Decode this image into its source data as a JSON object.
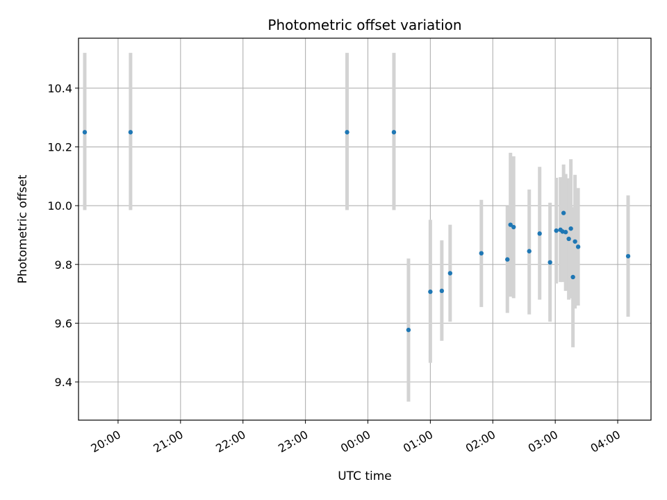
{
  "chart_data": {
    "type": "scatter",
    "title": "Photometric offset variation",
    "xlabel": "UTC time",
    "ylabel": "Photometric offset",
    "x_unit": "UTC time (HH:MM)",
    "xlim": [
      "19:22",
      "04:32"
    ],
    "ylim": [
      9.27,
      10.57
    ],
    "x_ticks": [
      "20:00",
      "21:00",
      "22:00",
      "23:00",
      "00:00",
      "01:00",
      "02:00",
      "03:00",
      "04:00"
    ],
    "y_ticks": [
      9.4,
      9.6,
      9.8,
      10.0,
      10.2,
      10.4
    ],
    "y_tick_labels": [
      "9.4",
      "9.6",
      "9.8",
      "10.0",
      "10.2",
      "10.4"
    ],
    "grid": true,
    "marker_color": "#1f77b4",
    "errorbar_color": "#d3d3d3",
    "points": [
      {
        "t": "19:28",
        "y": 10.25,
        "lo": 9.985,
        "hi": 10.52
      },
      {
        "t": "20:12",
        "y": 10.25,
        "lo": 9.985,
        "hi": 10.52
      },
      {
        "t": "23:40",
        "y": 10.25,
        "lo": 9.985,
        "hi": 10.52
      },
      {
        "t": "00:25",
        "y": 10.25,
        "lo": 9.985,
        "hi": 10.52
      },
      {
        "t": "00:39",
        "y": 9.577,
        "lo": 9.333,
        "hi": 9.82
      },
      {
        "t": "01:00",
        "y": 9.707,
        "lo": 9.465,
        "hi": 9.952
      },
      {
        "t": "01:11",
        "y": 9.71,
        "lo": 9.54,
        "hi": 9.882
      },
      {
        "t": "01:19",
        "y": 9.77,
        "lo": 9.605,
        "hi": 9.935
      },
      {
        "t": "01:49",
        "y": 9.838,
        "lo": 9.655,
        "hi": 10.02
      },
      {
        "t": "02:14",
        "y": 9.817,
        "lo": 9.635,
        "hi": 9.998
      },
      {
        "t": "02:17",
        "y": 9.935,
        "lo": 9.69,
        "hi": 10.18
      },
      {
        "t": "02:20",
        "y": 9.927,
        "lo": 9.685,
        "hi": 10.168
      },
      {
        "t": "02:35",
        "y": 9.845,
        "lo": 9.63,
        "hi": 10.055
      },
      {
        "t": "02:45",
        "y": 9.905,
        "lo": 9.68,
        "hi": 10.132
      },
      {
        "t": "02:55",
        "y": 9.807,
        "lo": 9.605,
        "hi": 10.01
      },
      {
        "t": "03:01",
        "y": 9.915,
        "lo": 9.735,
        "hi": 10.095
      },
      {
        "t": "03:05",
        "y": 9.918,
        "lo": 9.74,
        "hi": 10.097
      },
      {
        "t": "03:07",
        "y": 9.912,
        "lo": 9.74,
        "hi": 10.087
      },
      {
        "t": "03:08",
        "y": 9.975,
        "lo": 9.81,
        "hi": 10.14
      },
      {
        "t": "03:10",
        "y": 9.91,
        "lo": 9.71,
        "hi": 10.108
      },
      {
        "t": "03:13",
        "y": 9.887,
        "lo": 9.68,
        "hi": 10.093
      },
      {
        "t": "03:15",
        "y": 9.922,
        "lo": 9.685,
        "hi": 10.158
      },
      {
        "t": "03:17",
        "y": 9.757,
        "lo": 9.518,
        "hi": 9.995
      },
      {
        "t": "03:19",
        "y": 9.878,
        "lo": 9.65,
        "hi": 10.105
      },
      {
        "t": "03:22",
        "y": 9.86,
        "lo": 9.66,
        "hi": 10.06
      },
      {
        "t": "04:10",
        "y": 9.828,
        "lo": 9.622,
        "hi": 10.035
      }
    ]
  }
}
